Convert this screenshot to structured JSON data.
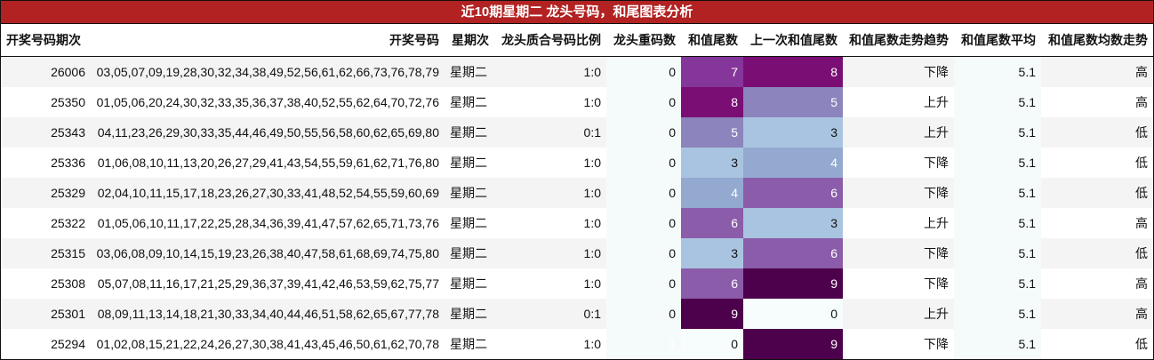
{
  "title": "近10期星期二 龙头号码，和尾图表分析",
  "columns": [
    "开奖号码期次",
    "开奖号码",
    "星期次",
    "龙头质合号码比例",
    "龙头重码数",
    "和值尾数",
    "上一次和值尾数",
    "和值尾数走势趋势",
    "和值尾数平均",
    "和值尾数均数走势"
  ],
  "colors": {
    "title_bg": "#b22222",
    "heat": {
      "0": "#f7fcfd",
      "1": "#4d004b",
      "3": "#a9c4e0",
      "4": "#93a9d0",
      "5": "#8c84bc",
      "6": "#8b5ca9",
      "7": "#85369a",
      "8": "#7b0e74",
      "9": "#4d004b"
    }
  },
  "rows": [
    {
      "period": "26006",
      "numbers": "03,05,07,09,19,28,30,32,34,38,49,52,56,61,62,66,73,76,78,79",
      "weekday": "星期二",
      "ratio": "1:0",
      "repeat": "0",
      "tail": "7",
      "prev_tail": "8",
      "trend": "下降",
      "avg": "5.1",
      "avg_trend": "高"
    },
    {
      "period": "25350",
      "numbers": "01,05,06,20,24,30,32,33,35,36,37,38,40,52,55,62,64,70,72,76",
      "weekday": "星期二",
      "ratio": "1:0",
      "repeat": "0",
      "tail": "8",
      "prev_tail": "5",
      "trend": "上升",
      "avg": "5.1",
      "avg_trend": "高"
    },
    {
      "period": "25343",
      "numbers": "04,11,23,26,29,30,33,35,44,46,49,50,55,56,58,60,62,65,69,80",
      "weekday": "星期二",
      "ratio": "0:1",
      "repeat": "0",
      "tail": "5",
      "prev_tail": "3",
      "trend": "上升",
      "avg": "5.1",
      "avg_trend": "低"
    },
    {
      "period": "25336",
      "numbers": "01,06,08,10,11,13,20,26,27,29,41,43,54,55,59,61,62,71,76,80",
      "weekday": "星期二",
      "ratio": "1:0",
      "repeat": "0",
      "tail": "3",
      "prev_tail": "4",
      "trend": "下降",
      "avg": "5.1",
      "avg_trend": "低"
    },
    {
      "period": "25329",
      "numbers": "02,04,10,11,15,17,18,23,26,27,30,33,41,48,52,54,55,59,60,69",
      "weekday": "星期二",
      "ratio": "1:0",
      "repeat": "0",
      "tail": "4",
      "prev_tail": "6",
      "trend": "下降",
      "avg": "5.1",
      "avg_trend": "低"
    },
    {
      "period": "25322",
      "numbers": "01,05,06,10,11,17,22,25,28,34,36,39,41,47,57,62,65,71,73,76",
      "weekday": "星期二",
      "ratio": "1:0",
      "repeat": "0",
      "tail": "6",
      "prev_tail": "3",
      "trend": "上升",
      "avg": "5.1",
      "avg_trend": "高"
    },
    {
      "period": "25315",
      "numbers": "03,06,08,09,10,14,15,19,23,26,38,40,47,58,61,68,69,74,75,80",
      "weekday": "星期二",
      "ratio": "1:0",
      "repeat": "0",
      "tail": "3",
      "prev_tail": "6",
      "trend": "下降",
      "avg": "5.1",
      "avg_trend": "低"
    },
    {
      "period": "25308",
      "numbers": "05,07,08,11,16,17,21,25,29,36,37,39,41,42,46,53,59,62,75,77",
      "weekday": "星期二",
      "ratio": "1:0",
      "repeat": "0",
      "tail": "6",
      "prev_tail": "9",
      "trend": "下降",
      "avg": "5.1",
      "avg_trend": "高"
    },
    {
      "period": "25301",
      "numbers": "08,09,11,13,14,18,21,30,33,34,40,44,46,51,58,62,65,67,77,78",
      "weekday": "星期二",
      "ratio": "0:1",
      "repeat": "0",
      "tail": "9",
      "prev_tail": "0",
      "trend": "上升",
      "avg": "5.1",
      "avg_trend": "高"
    },
    {
      "period": "25294",
      "numbers": "01,02,08,15,21,22,24,26,27,30,38,41,43,45,46,50,61,62,70,78",
      "weekday": "星期二",
      "ratio": "1:0",
      "repeat": "1",
      "tail": "0",
      "prev_tail": "9",
      "trend": "下降",
      "avg": "5.1",
      "avg_trend": "低"
    }
  ]
}
